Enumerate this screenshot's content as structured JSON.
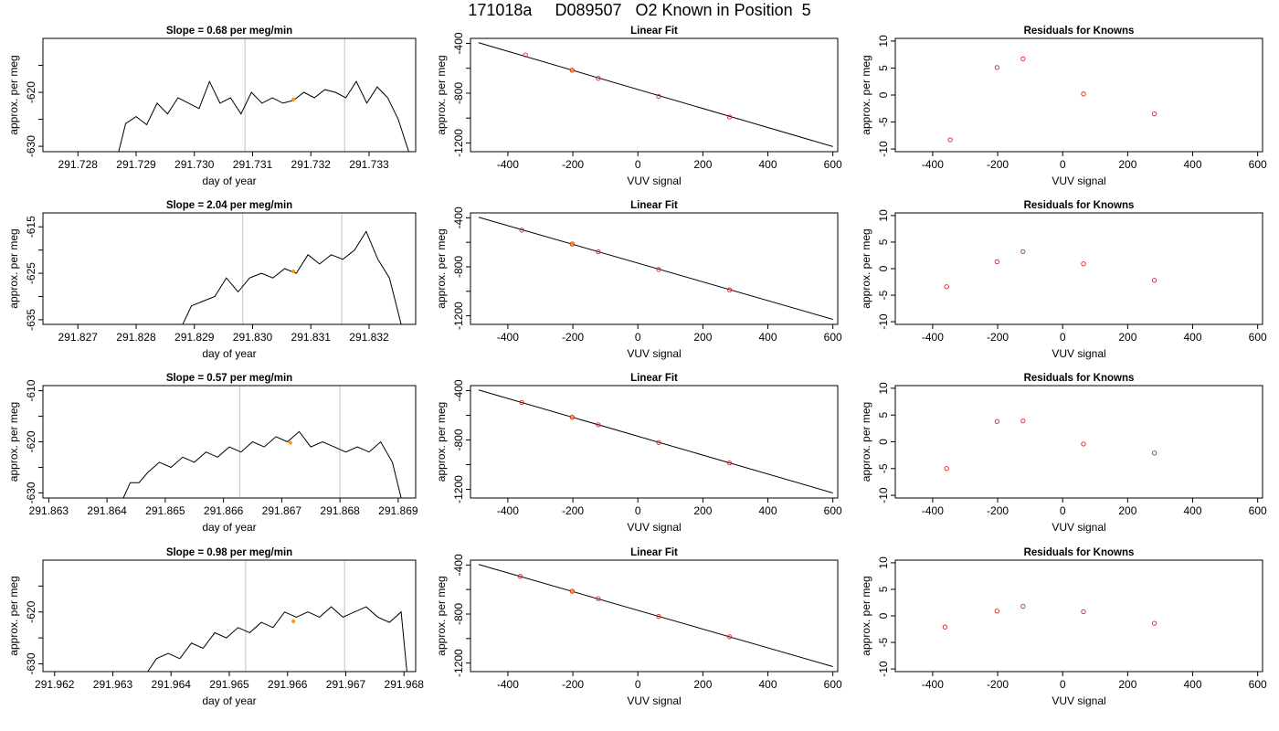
{
  "page": {
    "title": "171018a     D089507   O2 Known in Position  5"
  },
  "colors": {
    "axis": "#000000",
    "trace": "#000000",
    "window_line": "#cccccc",
    "point": "#dd2222",
    "highlight": "#ff9900"
  },
  "chart_data": [
    {
      "type": "line",
      "row": 0,
      "col": 0,
      "title": "Slope =  0.68  per meg/min",
      "xlabel": "day of year",
      "ylabel": "approx. per meg",
      "xlim": [
        291.7274,
        291.7338
      ],
      "ylim": [
        -631,
        -610
      ],
      "xticks": [
        291.728,
        291.729,
        291.73,
        291.731,
        291.732,
        291.733
      ],
      "xtick_labels": [
        "291.728",
        "291.729",
        "291.730",
        "291.731",
        "291.732",
        "291.733"
      ],
      "yticks": [
        -630,
        -625,
        -620,
        -615
      ],
      "ytick_labels": [
        "-630",
        "",
        "-620",
        ""
      ],
      "vlines": [
        291.73087,
        291.73258
      ],
      "series": [
        {
          "x": [
            291.7287,
            291.72882,
            291.729,
            291.72918,
            291.72936,
            291.72954,
            291.72972,
            291.7299,
            291.73008,
            291.73026,
            291.73044,
            291.73062,
            291.7308,
            291.73098,
            291.73116,
            291.73134,
            291.73152,
            291.7317,
            291.73188,
            291.73206,
            291.73224,
            291.73242,
            291.7326,
            291.73278,
            291.73296,
            291.73314,
            291.73332,
            291.7335,
            291.73368
          ],
          "y": [
            -631,
            -625.8,
            -624.5,
            -626,
            -622,
            -624,
            -621,
            -622,
            -623,
            -618,
            -622,
            -621,
            -624,
            -620,
            -622,
            -621,
            -622,
            -621.5,
            -620,
            -621,
            -619.5,
            -620,
            -621,
            -618,
            -622,
            -619,
            -621,
            -625,
            -631
          ]
        }
      ],
      "marker": {
        "x": 291.7317,
        "y": -621.3
      }
    },
    {
      "type": "line",
      "row": 1,
      "col": 0,
      "title": "Slope =  2.04  per meg/min",
      "xlabel": "day of year",
      "ylabel": "approx. per meg",
      "xlim": [
        291.8264,
        291.8328
      ],
      "ylim": [
        -636,
        -612
      ],
      "xticks": [
        291.827,
        291.828,
        291.829,
        291.83,
        291.831,
        291.832
      ],
      "xtick_labels": [
        "291.827",
        "291.828",
        "291.829",
        "291.830",
        "291.831",
        "291.832"
      ],
      "yticks": [
        -635,
        -630,
        -625,
        -620,
        -615
      ],
      "ytick_labels": [
        "-635",
        "",
        "-625",
        "",
        "-615"
      ],
      "vlines": [
        291.82983,
        291.83153
      ],
      "series": [
        {
          "x": [
            291.8288,
            291.82895,
            291.82915,
            291.82935,
            291.82955,
            291.82975,
            291.82995,
            291.83015,
            291.83035,
            291.83055,
            291.83075,
            291.83095,
            291.83115,
            291.83135,
            291.83155,
            291.83175,
            291.83195,
            291.83215,
            291.83235,
            291.83255
          ],
          "y": [
            -636,
            -632,
            -631,
            -630,
            -626,
            -629,
            -626,
            -625,
            -626,
            -624,
            -625,
            -621,
            -623,
            -621,
            -622,
            -620,
            -616,
            -622,
            -626,
            -636
          ]
        }
      ],
      "marker": {
        "x": 291.8307,
        "y": -624.6
      }
    },
    {
      "type": "line",
      "row": 2,
      "col": 0,
      "title": "Slope =  0.57  per meg/min",
      "xlabel": "day of year",
      "ylabel": "approx. per meg",
      "xlim": [
        291.8629,
        291.8693
      ],
      "ylim": [
        -631,
        -609
      ],
      "xticks": [
        291.863,
        291.864,
        291.865,
        291.866,
        291.867,
        291.868,
        291.869
      ],
      "xtick_labels": [
        "291.863",
        "291.864",
        "291.865",
        "291.866",
        "291.867",
        "291.868",
        "291.869"
      ],
      "yticks": [
        -630,
        -625,
        -620,
        -615,
        -610
      ],
      "ytick_labels": [
        "-630",
        "",
        "-620",
        "",
        "-610"
      ],
      "vlines": [
        291.86628,
        291.868
      ],
      "series": [
        {
          "x": [
            291.86428,
            291.8644,
            291.86455,
            291.8647,
            291.8649,
            291.8651,
            291.8653,
            291.8655,
            291.8657,
            291.8659,
            291.8661,
            291.8663,
            291.8665,
            291.8667,
            291.8669,
            291.8671,
            291.8673,
            291.8675,
            291.8677,
            291.8679,
            291.8681,
            291.8683,
            291.8685,
            291.8687,
            291.8689,
            291.86905
          ],
          "y": [
            -631,
            -628,
            -628,
            -626,
            -624,
            -625,
            -623,
            -624,
            -622,
            -623,
            -621,
            -622,
            -620,
            -621,
            -619,
            -620,
            -618,
            -621,
            -620,
            -621,
            -622,
            -621,
            -622,
            -620,
            -624,
            -631
          ]
        }
      ],
      "marker": {
        "x": 291.86715,
        "y": -620.2
      }
    },
    {
      "type": "line",
      "row": 3,
      "col": 0,
      "title": "Slope =  0.98  per meg/min",
      "xlabel": "day of year",
      "ylabel": "approx. per meg",
      "xlim": [
        291.9618,
        291.9682
      ],
      "ylim": [
        -631.5,
        -610
      ],
      "xticks": [
        291.962,
        291.963,
        291.964,
        291.965,
        291.966,
        291.967,
        291.968
      ],
      "xtick_labels": [
        "291.962",
        "291.963",
        "291.964",
        "291.965",
        "291.966",
        "291.967",
        "291.968"
      ],
      "yticks": [
        -630,
        -625,
        -620,
        -615
      ],
      "ytick_labels": [
        "-630",
        "",
        "-620",
        ""
      ],
      "vlines": [
        291.96528,
        291.96698
      ],
      "series": [
        {
          "x": [
            291.9636,
            291.96375,
            291.96395,
            291.96415,
            291.96435,
            291.96455,
            291.96475,
            291.96495,
            291.96515,
            291.96535,
            291.96555,
            291.96575,
            291.96595,
            291.96615,
            291.96635,
            291.96655,
            291.96675,
            291.96695,
            291.96715,
            291.96735,
            291.96755,
            291.96775,
            291.96795,
            291.96805
          ],
          "y": [
            -631.5,
            -629,
            -628,
            -629,
            -626,
            -627,
            -624,
            -625,
            -623,
            -624,
            -622,
            -623,
            -620,
            -621,
            -620,
            -621,
            -619,
            -621,
            -620,
            -619,
            -621,
            -622,
            -620,
            -631.5
          ]
        }
      ],
      "marker": {
        "x": 291.9661,
        "y": -621.8
      }
    },
    {
      "type": "scatter",
      "row": 0,
      "col": 1,
      "title": "Linear Fit",
      "xlabel": "VUV signal",
      "ylabel": "approx. per meg",
      "xlim": [
        -515,
        615
      ],
      "ylim": [
        -1270,
        -360
      ],
      "xticks": [
        -400,
        -200,
        0,
        200,
        400,
        600
      ],
      "xtick_labels": [
        "-400",
        "-200",
        "0",
        "200",
        "400",
        "600"
      ],
      "yticks": [
        -400,
        -600,
        -800,
        -1000,
        -1200
      ],
      "ytick_labels": [
        "-400",
        "",
        "-800",
        "",
        "-1200"
      ],
      "fit": {
        "slope": -0.765,
        "intercept": -770,
        "from": -490,
        "to": 600
      },
      "series": [
        {
          "x": [
            -346,
            -202,
            -122,
            64,
            282
          ],
          "y": [
            -493,
            -616,
            -681,
            -826,
            -991
          ]
        }
      ],
      "highlight": {
        "x": -202,
        "y": -616
      }
    },
    {
      "type": "scatter",
      "row": 1,
      "col": 1,
      "title": "Linear Fit",
      "xlabel": "VUV signal",
      "ylabel": "approx. per meg",
      "xlim": [
        -515,
        615
      ],
      "ylim": [
        -1270,
        -360
      ],
      "xticks": [
        -400,
        -200,
        0,
        200,
        400,
        600
      ],
      "xtick_labels": [
        "-400",
        "-200",
        "0",
        "200",
        "400",
        "600"
      ],
      "yticks": [
        -400,
        -600,
        -800,
        -1000,
        -1200
      ],
      "ytick_labels": [
        "-400",
        "",
        "-800",
        "",
        "-1200"
      ],
      "fit": {
        "slope": -0.765,
        "intercept": -770,
        "from": -490,
        "to": 600
      },
      "series": [
        {
          "x": [
            -357,
            -202,
            -122,
            64,
            282
          ],
          "y": [
            -501,
            -614,
            -677,
            -822,
            -988
          ]
        }
      ],
      "highlight": {
        "x": -202,
        "y": -614
      }
    },
    {
      "type": "scatter",
      "row": 2,
      "col": 1,
      "title": "Linear Fit",
      "xlabel": "VUV signal",
      "ylabel": "approx. per meg",
      "xlim": [
        -515,
        615
      ],
      "ylim": [
        -1270,
        -360
      ],
      "xticks": [
        -400,
        -200,
        0,
        200,
        400,
        600
      ],
      "xtick_labels": [
        "-400",
        "-200",
        "0",
        "200",
        "400",
        "600"
      ],
      "yticks": [
        -400,
        -600,
        -800,
        -1000,
        -1200
      ],
      "ytick_labels": [
        "-400",
        "",
        "-800",
        "",
        "-1200"
      ],
      "fit": {
        "slope": -0.765,
        "intercept": -770,
        "from": -490,
        "to": 600
      },
      "series": [
        {
          "x": [
            -357,
            -202,
            -122,
            64,
            282
          ],
          "y": [
            -497,
            -616,
            -677,
            -821,
            -986
          ]
        }
      ],
      "highlight": {
        "x": -202,
        "y": -616
      }
    },
    {
      "type": "scatter",
      "row": 3,
      "col": 1,
      "title": "Linear Fit",
      "xlabel": "VUV signal",
      "ylabel": "approx. per meg",
      "xlim": [
        -515,
        615
      ],
      "ylim": [
        -1270,
        -360
      ],
      "xticks": [
        -400,
        -200,
        0,
        200,
        400,
        600
      ],
      "xtick_labels": [
        "-400",
        "-200",
        "0",
        "200",
        "400",
        "600"
      ],
      "yticks": [
        -400,
        -600,
        -800,
        -1000,
        -1200
      ],
      "ytick_labels": [
        "-400",
        "",
        "-800",
        "",
        "-1200"
      ],
      "fit": {
        "slope": -0.765,
        "intercept": -770,
        "from": -490,
        "to": 600
      },
      "series": [
        {
          "x": [
            -362,
            -202,
            -122,
            64,
            282
          ],
          "y": [
            -492,
            -614,
            -674,
            -820,
            -986
          ]
        }
      ],
      "highlight": {
        "x": -202,
        "y": -614
      }
    },
    {
      "type": "scatter",
      "row": 0,
      "col": 2,
      "title": "Residuals for Knowns",
      "xlabel": "VUV signal",
      "ylabel": "approx. per meg",
      "xlim": [
        -515,
        615
      ],
      "ylim": [
        -10.5,
        10.5
      ],
      "xticks": [
        -400,
        -200,
        0,
        200,
        400,
        600
      ],
      "xtick_labels": [
        "-400",
        "-200",
        "0",
        "200",
        "400",
        "600"
      ],
      "yticks": [
        -10,
        -5,
        0,
        5,
        10
      ],
      "ytick_labels": [
        "-10",
        "-5",
        "0",
        "5",
        "10"
      ],
      "series": [
        {
          "x": [
            -346,
            -202,
            -122,
            64,
            282
          ],
          "y": [
            -8.3,
            5.1,
            6.7,
            0.2,
            -3.5
          ]
        }
      ]
    },
    {
      "type": "scatter",
      "row": 1,
      "col": 2,
      "title": "Residuals for Knowns",
      "xlabel": "VUV signal",
      "ylabel": "approx. per meg",
      "xlim": [
        -515,
        615
      ],
      "ylim": [
        -10.5,
        10.5
      ],
      "xticks": [
        -400,
        -200,
        0,
        200,
        400,
        600
      ],
      "xtick_labels": [
        "-400",
        "-200",
        "0",
        "200",
        "400",
        "600"
      ],
      "yticks": [
        -10,
        -5,
        0,
        5,
        10
      ],
      "ytick_labels": [
        "-10",
        "-5",
        "0",
        "5",
        "10"
      ],
      "series": [
        {
          "x": [
            -357,
            -202,
            -122,
            64,
            282
          ],
          "y": [
            -3.4,
            1.3,
            3.2,
            0.9,
            -2.2
          ]
        }
      ]
    },
    {
      "type": "scatter",
      "row": 2,
      "col": 2,
      "title": "Residuals for Knowns",
      "xlabel": "VUV signal",
      "ylabel": "approx. per meg",
      "xlim": [
        -515,
        615
      ],
      "ylim": [
        -10.5,
        10.5
      ],
      "xticks": [
        -400,
        -200,
        0,
        200,
        400,
        600
      ],
      "xtick_labels": [
        "-400",
        "-200",
        "0",
        "200",
        "400",
        "600"
      ],
      "yticks": [
        -10,
        -5,
        0,
        5,
        10
      ],
      "ytick_labels": [
        "-10",
        "-5",
        "0",
        "5",
        "10"
      ],
      "series": [
        {
          "x": [
            -357,
            -202,
            -122,
            64,
            282
          ],
          "y": [
            -5.0,
            3.8,
            3.9,
            -0.4,
            -2.1
          ]
        }
      ]
    },
    {
      "type": "scatter",
      "row": 3,
      "col": 2,
      "title": "Residuals for Knowns",
      "xlabel": "VUV signal",
      "ylabel": "approx. per meg",
      "xlim": [
        -515,
        615
      ],
      "ylim": [
        -10.5,
        10.5
      ],
      "xticks": [
        -400,
        -200,
        0,
        200,
        400,
        600
      ],
      "xtick_labels": [
        "-400",
        "-200",
        "0",
        "200",
        "400",
        "600"
      ],
      "yticks": [
        -10,
        -5,
        0,
        5,
        10
      ],
      "ytick_labels": [
        "-10",
        "-5",
        "0",
        "5",
        "10"
      ],
      "series": [
        {
          "x": [
            -362,
            -202,
            -122,
            64,
            282
          ],
          "y": [
            -2.1,
            0.9,
            1.8,
            0.8,
            -1.4
          ]
        }
      ]
    }
  ]
}
